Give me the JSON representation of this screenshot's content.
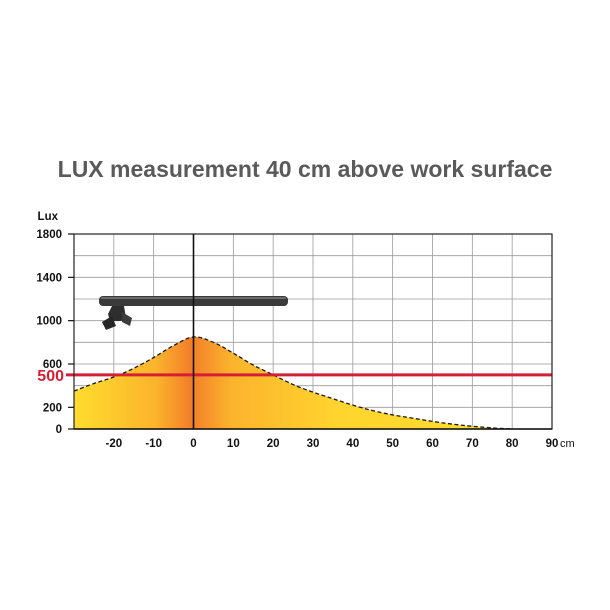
{
  "chart_data": {
    "type": "area",
    "title": "LUX measurement 40 cm above work surface",
    "ylabel": "Lux",
    "xunit": "cm",
    "xlim": [
      -30,
      90
    ],
    "ylim": [
      0,
      1800
    ],
    "x_ticks": [
      -20,
      -10,
      0,
      10,
      20,
      30,
      40,
      50,
      60,
      70,
      80,
      90
    ],
    "y_ticks": [
      0,
      200,
      600,
      1000,
      1400,
      1800
    ],
    "threshold": {
      "value": 500,
      "label": "500",
      "color": "#d51f35"
    },
    "grid": true,
    "series": [
      {
        "x": [
          -30,
          -25,
          -20,
          -15,
          -10,
          -5,
          0,
          5,
          10,
          15,
          20,
          25,
          30,
          35,
          40,
          45,
          50,
          55,
          60,
          65,
          70,
          75,
          80
        ],
        "y": [
          350,
          420,
          480,
          560,
          660,
          770,
          850,
          800,
          700,
          590,
          500,
          410,
          340,
          280,
          220,
          170,
          130,
          100,
          70,
          45,
          25,
          10,
          0
        ]
      }
    ]
  }
}
